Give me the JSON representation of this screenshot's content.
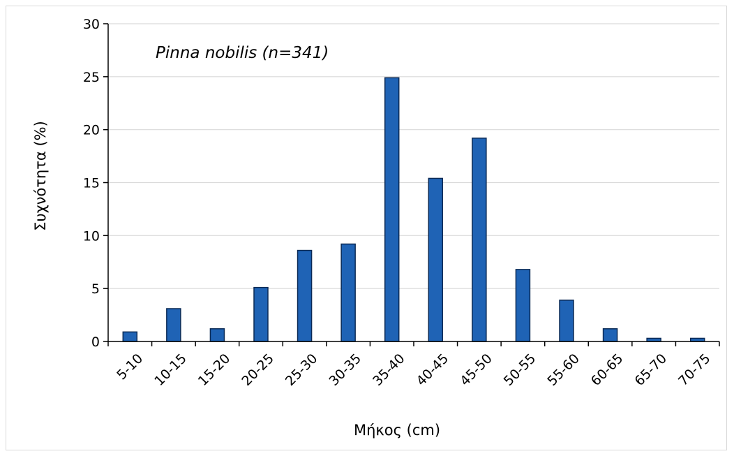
{
  "chart_data": {
    "type": "bar",
    "categories": [
      "5-10",
      "10-15",
      "15-20",
      "20-25",
      "25-30",
      "30-35",
      "35-40",
      "40-45",
      "45-50",
      "50-55",
      "55-60",
      "60-65",
      "65-70",
      "70-75"
    ],
    "values": [
      0.9,
      3.1,
      1.2,
      5.1,
      8.6,
      9.2,
      24.9,
      15.4,
      19.2,
      6.8,
      3.9,
      1.2,
      0.3,
      0.3
    ],
    "title": "",
    "annotation": "Pinna nobilis (n=341)",
    "xlabel": "Μήκος (cm)",
    "ylabel": "Συχνότητα (%)",
    "ylim": [
      0,
      30
    ],
    "yticks": [
      0,
      5,
      10,
      15,
      20,
      25,
      30
    ],
    "grid": true,
    "bar_color": "#1f63b5",
    "bar_edge_color": "#0b2a55",
    "grid_color": "#d9d9d9"
  }
}
